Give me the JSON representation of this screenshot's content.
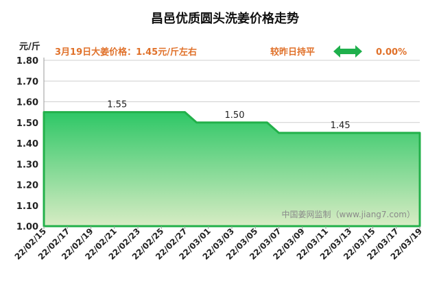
{
  "chart_data": {
    "type": "area",
    "title": "昌邑优质圆头洗姜价格走势",
    "ylabel": "元/斤",
    "ylim": [
      1.0,
      1.8
    ],
    "yticks": [
      "1.00",
      "1.10",
      "1.20",
      "1.30",
      "1.40",
      "1.50",
      "1.60",
      "1.70",
      "1.80"
    ],
    "x_tick_labels": [
      "22/02/15",
      "22/02/17",
      "22/02/19",
      "22/02/21",
      "22/02/23",
      "22/02/25",
      "22/02/27",
      "22/03/01",
      "22/03/03",
      "22/03/05",
      "22/03/07",
      "22/03/09",
      "22/03/11",
      "22/03/13",
      "22/03/15",
      "22/03/17",
      "22/03/19"
    ],
    "x": [
      "22/02/15",
      "22/02/27",
      "22/02/28",
      "22/03/06",
      "22/03/07",
      "22/03/19"
    ],
    "values": [
      1.55,
      1.55,
      1.5,
      1.5,
      1.45,
      1.45
    ],
    "data_labels": [
      {
        "x": "22/02/21",
        "text": "1.55"
      },
      {
        "x": "22/03/03",
        "text": "1.50"
      },
      {
        "x": "22/03/12",
        "text": "1.45"
      }
    ],
    "grid": true,
    "colors": {
      "line": "#22b04a",
      "fill_top": "#2ec766",
      "fill_bottom": "#d8ecc4",
      "accent": "#e0712a",
      "arrow": "#1fb04c"
    }
  },
  "info": {
    "price_text": "3月19日大姜价格：1.45元/斤左右",
    "change_text": "较昨日持平",
    "change_icon": "double-arrow-icon",
    "change_pct": "0.00%"
  },
  "watermark": "中国姜网监制（www.jiang7.com）"
}
